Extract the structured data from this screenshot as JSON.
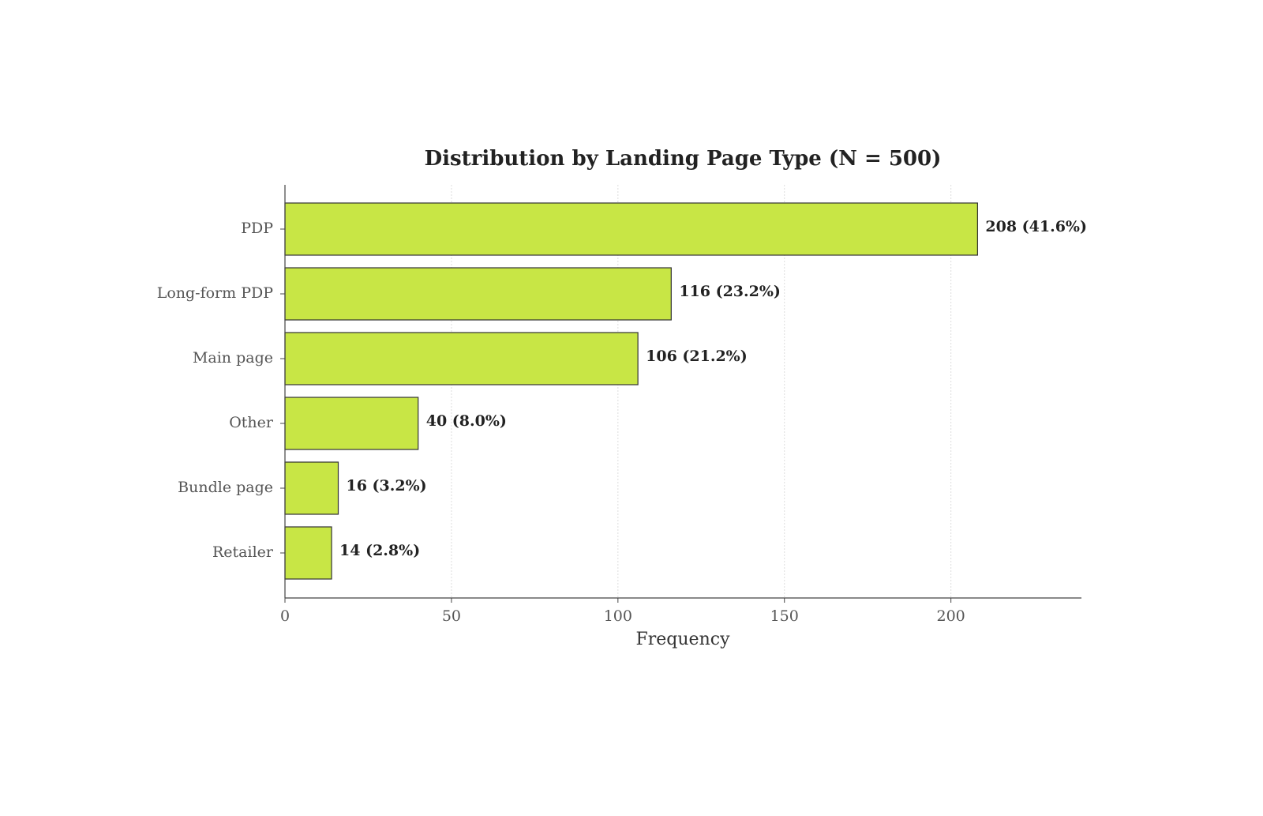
{
  "chart_data": {
    "type": "barh",
    "title": "Distribution by Landing Page Type (N = 500)",
    "x_label": "Frequency",
    "categories": [
      "PDP",
      "Long-form PDP",
      "Main page",
      "Other",
      "Bundle page",
      "Retailer"
    ],
    "values": [
      208,
      116,
      106,
      40,
      16,
      14
    ],
    "value_labels": [
      "208 (41.6%)",
      "116 (23.2%)",
      "106 (21.2%)",
      "40 (8.0%)",
      "16 (3.2%)",
      "14 (2.8%)"
    ],
    "color": "#c8e645",
    "xlim": [
      0,
      239.2
    ],
    "xticks": [
      0,
      50,
      100,
      150,
      200
    ],
    "grid": true
  }
}
